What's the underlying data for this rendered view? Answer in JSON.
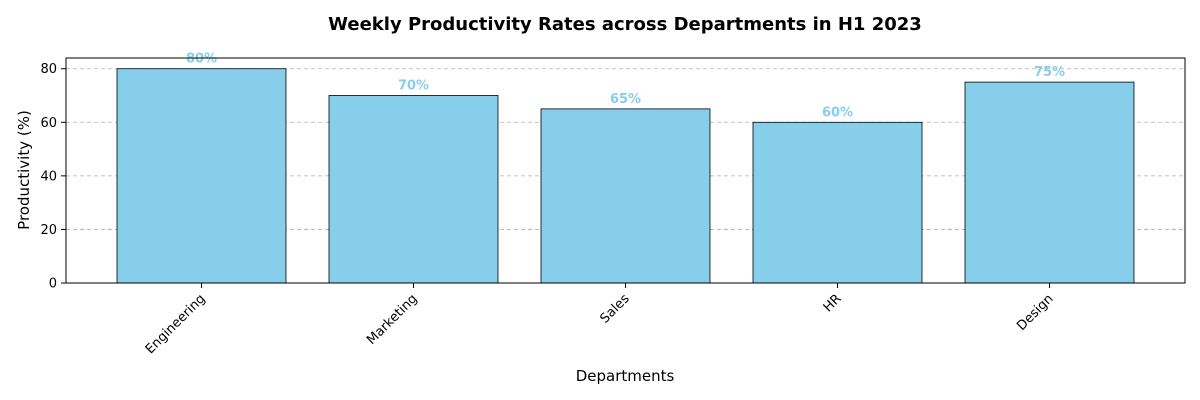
{
  "chart_data": {
    "type": "bar",
    "title": "Weekly Productivity Rates across Departments in H1 2023",
    "xlabel": "Departments",
    "ylabel": "Productivity (%)",
    "categories": [
      "Engineering",
      "Marketing",
      "Sales",
      "HR",
      "Design"
    ],
    "values": [
      80,
      70,
      65,
      60,
      75
    ],
    "value_labels": [
      "80%",
      "70%",
      "65%",
      "60%",
      "75%"
    ],
    "ylim": [
      0,
      84
    ],
    "yticks": [
      0,
      20,
      40,
      60,
      80
    ],
    "ytick_labels": [
      "0",
      "20",
      "40",
      "60",
      "80"
    ],
    "grid": "y-dashed",
    "bar_color": "#87CEEB",
    "label_color": "#87CEEB"
  }
}
